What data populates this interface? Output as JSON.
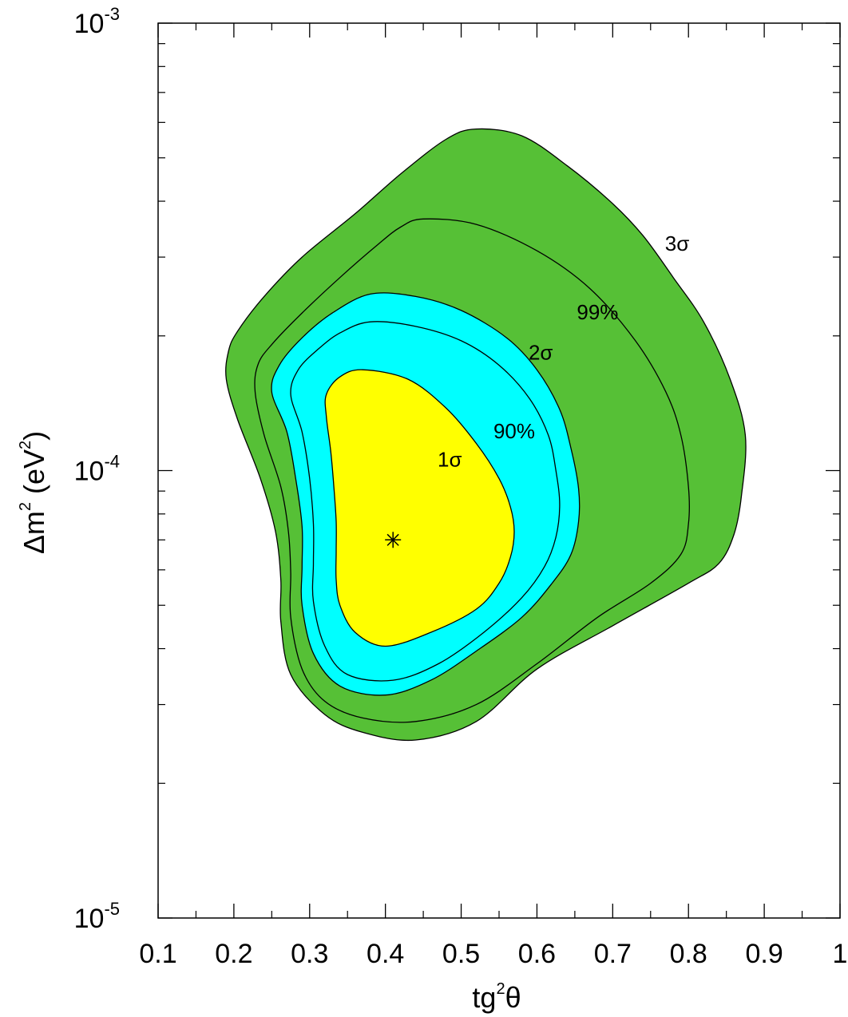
{
  "chart_data": {
    "type": "area",
    "xlabel": {
      "base": "tg",
      "sup": "2",
      "tail": "θ"
    },
    "ylabel": {
      "lead": "Δm",
      "sup": "2",
      "mid": " (eV",
      "unit_sup": "2",
      "tail": ")"
    },
    "x_scale": "linear",
    "y_scale": "log",
    "xlim": [
      0.1,
      1.0
    ],
    "ylim": [
      1e-05,
      0.001
    ],
    "grid": false,
    "x_ticks": [
      "0.1",
      "0.2",
      "0.3",
      "0.4",
      "0.5",
      "0.6",
      "0.7",
      "0.8",
      "0.9",
      "1"
    ],
    "y_ticks": [
      {
        "base": "10",
        "exp": "-5",
        "value": 1e-05
      },
      {
        "base": "10",
        "exp": "-4",
        "value": 0.0001
      },
      {
        "base": "10",
        "exp": "-3",
        "value": 0.001
      }
    ],
    "best_fit": {
      "x": 0.41,
      "y": 7e-05,
      "marker": "asterisk"
    },
    "colors": {
      "sigma3_fill": "#56c036",
      "sigma2_fill": "#00ffff",
      "sigma1_fill": "#ffff00",
      "line": "#000000"
    },
    "series": [
      {
        "name": "3σ",
        "fill": "#56c036",
        "label_at": [
          0.785,
          0.00031
        ],
        "points": [
          [
            0.52,
            0.00058
          ],
          [
            0.58,
            0.00056
          ],
          [
            0.64,
            0.00048
          ],
          [
            0.7,
            0.000395
          ],
          [
            0.74,
            0.000335
          ],
          [
            0.78,
            0.00027
          ],
          [
            0.82,
            0.000215
          ],
          [
            0.855,
            0.00016
          ],
          [
            0.875,
            0.00012
          ],
          [
            0.87,
            8.8e-05
          ],
          [
            0.86,
            7.2e-05
          ],
          [
            0.84,
            6.2e-05
          ],
          [
            0.8,
            5.6e-05
          ],
          [
            0.7,
            4.5e-05
          ],
          [
            0.6,
            3.6e-05
          ],
          [
            0.52,
            2.75e-05
          ],
          [
            0.44,
            2.5e-05
          ],
          [
            0.37,
            2.6e-05
          ],
          [
            0.32,
            2.85e-05
          ],
          [
            0.275,
            3.5e-05
          ],
          [
            0.262,
            4.6e-05
          ],
          [
            0.262,
            5.7e-05
          ],
          [
            0.255,
            7.3e-05
          ],
          [
            0.235,
            9.6e-05
          ],
          [
            0.205,
            0.00013
          ],
          [
            0.19,
            0.00016
          ],
          [
            0.193,
            0.000185
          ],
          [
            0.205,
            0.000205
          ],
          [
            0.24,
            0.000245
          ],
          [
            0.29,
            0.0003
          ],
          [
            0.36,
            0.000375
          ],
          [
            0.42,
            0.00046
          ],
          [
            0.48,
            0.00055
          ]
        ]
      },
      {
        "name": "99%",
        "fill": "none",
        "label_at": [
          0.68,
          0.000218
        ],
        "points": [
          [
            0.45,
            0.000365
          ],
          [
            0.52,
            0.000355
          ],
          [
            0.6,
            0.00031
          ],
          [
            0.67,
            0.000255
          ],
          [
            0.73,
            0.000195
          ],
          [
            0.77,
            0.00015
          ],
          [
            0.79,
            0.00012
          ],
          [
            0.8,
            9.2e-05
          ],
          [
            0.8,
            7.6e-05
          ],
          [
            0.79,
            6.5e-05
          ],
          [
            0.75,
            5.6e-05
          ],
          [
            0.68,
            4.7e-05
          ],
          [
            0.6,
            3.7e-05
          ],
          [
            0.52,
            3e-05
          ],
          [
            0.44,
            2.75e-05
          ],
          [
            0.37,
            2.8e-05
          ],
          [
            0.32,
            3.05e-05
          ],
          [
            0.29,
            3.6e-05
          ],
          [
            0.275,
            4.7e-05
          ],
          [
            0.275,
            5.9e-05
          ],
          [
            0.272,
            7.3e-05
          ],
          [
            0.262,
            9.2e-05
          ],
          [
            0.24,
            0.00012
          ],
          [
            0.228,
            0.00015
          ],
          [
            0.232,
            0.000173
          ],
          [
            0.252,
            0.000193
          ],
          [
            0.29,
            0.000225
          ],
          [
            0.34,
            0.00027
          ],
          [
            0.39,
            0.00032
          ],
          [
            0.42,
            0.00035
          ]
        ]
      },
      {
        "name": "2σ",
        "fill": "#00ffff",
        "label_at": [
          0.605,
          0.000177
        ],
        "points": [
          [
            0.38,
            0.000248
          ],
          [
            0.44,
            0.000245
          ],
          [
            0.5,
            0.000228
          ],
          [
            0.56,
            0.000198
          ],
          [
            0.6,
            0.000168
          ],
          [
            0.63,
            0.000137
          ],
          [
            0.645,
            0.000112
          ],
          [
            0.655,
            9.1e-05
          ],
          [
            0.655,
            7.7e-05
          ],
          [
            0.645,
            6.5e-05
          ],
          [
            0.62,
            5.6e-05
          ],
          [
            0.58,
            4.7e-05
          ],
          [
            0.52,
            3.95e-05
          ],
          [
            0.46,
            3.4e-05
          ],
          [
            0.4,
            3.15e-05
          ],
          [
            0.34,
            3.3e-05
          ],
          [
            0.305,
            3.9e-05
          ],
          [
            0.29,
            5e-05
          ],
          [
            0.29,
            6.1e-05
          ],
          [
            0.29,
            7.5e-05
          ],
          [
            0.282,
            9.5e-05
          ],
          [
            0.27,
            0.000122
          ],
          [
            0.25,
            0.00015
          ],
          [
            0.26,
            0.000172
          ],
          [
            0.29,
            0.000198
          ],
          [
            0.33,
            0.000225
          ]
        ]
      },
      {
        "name": "90%",
        "fill": "none",
        "label_at": [
          0.57,
          0.000118
        ],
        "points": [
          [
            0.38,
            0.000215
          ],
          [
            0.44,
            0.00021
          ],
          [
            0.5,
            0.000195
          ],
          [
            0.55,
            0.000172
          ],
          [
            0.59,
            0.000145
          ],
          [
            0.615,
            0.00012
          ],
          [
            0.625,
            0.0001
          ],
          [
            0.63,
            8.4e-05
          ],
          [
            0.625,
            7.1e-05
          ],
          [
            0.61,
            6.1e-05
          ],
          [
            0.58,
            5.2e-05
          ],
          [
            0.53,
            4.35e-05
          ],
          [
            0.47,
            3.7e-05
          ],
          [
            0.41,
            3.4e-05
          ],
          [
            0.35,
            3.5e-05
          ],
          [
            0.32,
            4.05e-05
          ],
          [
            0.305,
            5.1e-05
          ],
          [
            0.305,
            6.2e-05
          ],
          [
            0.305,
            7.6e-05
          ],
          [
            0.3,
            9.6e-05
          ],
          [
            0.29,
            0.000122
          ],
          [
            0.275,
            0.000148
          ],
          [
            0.285,
            0.000168
          ],
          [
            0.31,
            0.000186
          ],
          [
            0.34,
            0.000203
          ]
        ]
      },
      {
        "name": "1σ",
        "fill": "#ffff00",
        "label_at": [
          0.485,
          0.000102
        ],
        "points": [
          [
            0.37,
            0.000168
          ],
          [
            0.43,
            0.00016
          ],
          [
            0.48,
            0.000138
          ],
          [
            0.52,
            0.000115
          ],
          [
            0.55,
            9.6e-05
          ],
          [
            0.565,
            8.3e-05
          ],
          [
            0.57,
            7.3e-05
          ],
          [
            0.565,
            6.4e-05
          ],
          [
            0.55,
            5.6e-05
          ],
          [
            0.52,
            4.9e-05
          ],
          [
            0.46,
            4.35e-05
          ],
          [
            0.4,
            4.05e-05
          ],
          [
            0.36,
            4.35e-05
          ],
          [
            0.34,
            5e-05
          ],
          [
            0.335,
            5.7e-05
          ],
          [
            0.335,
            6.6e-05
          ],
          [
            0.335,
            7.7e-05
          ],
          [
            0.332,
            9.2e-05
          ],
          [
            0.328,
            0.00011
          ],
          [
            0.322,
            0.000132
          ],
          [
            0.322,
            0.000148
          ],
          [
            0.34,
            0.000162
          ]
        ]
      }
    ]
  }
}
